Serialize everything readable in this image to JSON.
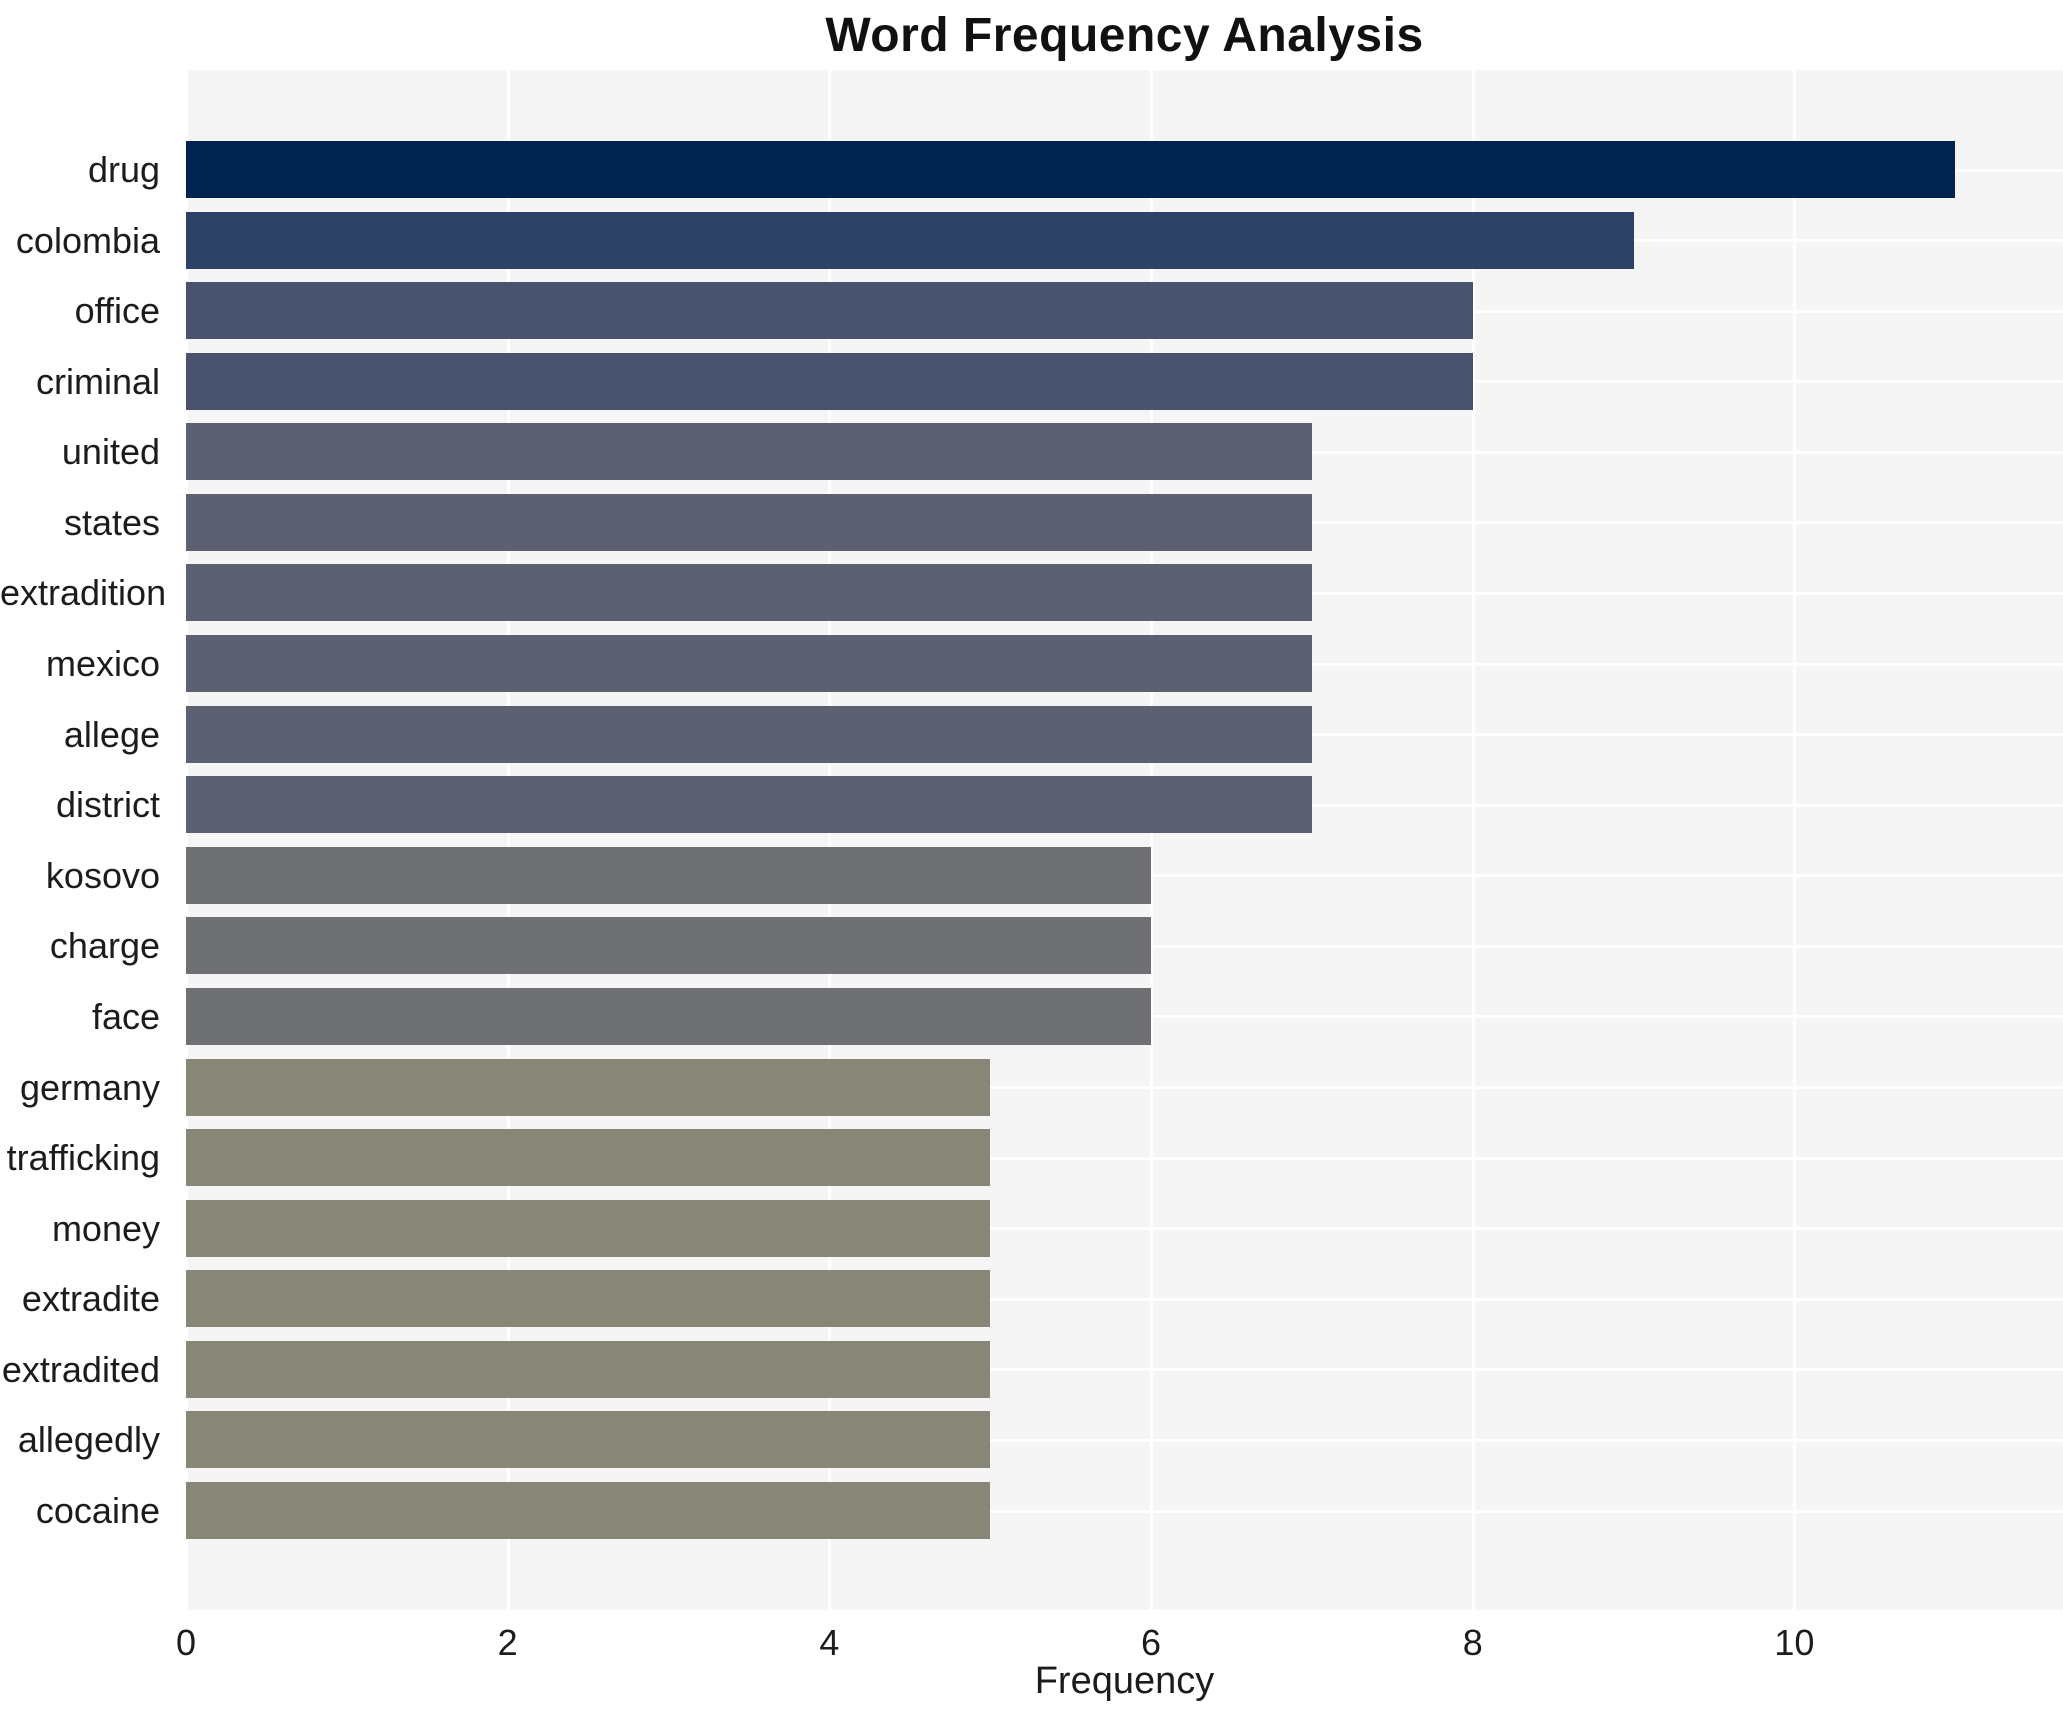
{
  "chart_data": {
    "type": "bar",
    "orientation": "horizontal",
    "title": "Word Frequency Analysis",
    "xlabel": "Frequency",
    "ylabel": "",
    "categories": [
      "drug",
      "colombia",
      "office",
      "criminal",
      "united",
      "states",
      "extradition",
      "mexico",
      "allege",
      "district",
      "kosovo",
      "charge",
      "face",
      "germany",
      "trafficking",
      "money",
      "extradite",
      "extradited",
      "allegedly",
      "cocaine"
    ],
    "values": [
      11,
      9,
      8,
      8,
      7,
      7,
      7,
      7,
      7,
      7,
      6,
      6,
      6,
      5,
      5,
      5,
      5,
      5,
      5,
      5
    ],
    "bar_colors": [
      "#00234f",
      "#2e4167",
      "#49536e",
      "#49536e",
      "#5c6070",
      "#5c6070",
      "#5c6070",
      "#5c6070",
      "#5c6070",
      "#5c6070",
      "#6f7073",
      "#6f7073",
      "#6f7073",
      "#878677",
      "#878677",
      "#878677",
      "#878677",
      "#878677",
      "#878677",
      "#878677"
    ],
    "xticks": [
      0,
      2,
      4,
      6,
      8,
      10
    ],
    "xlim": [
      0,
      11.67
    ],
    "grid": true,
    "legend_position": "none",
    "plot_background": "#f5f5f6",
    "figure_background": "#ffffff",
    "gridline_color": "#ffffff"
  }
}
